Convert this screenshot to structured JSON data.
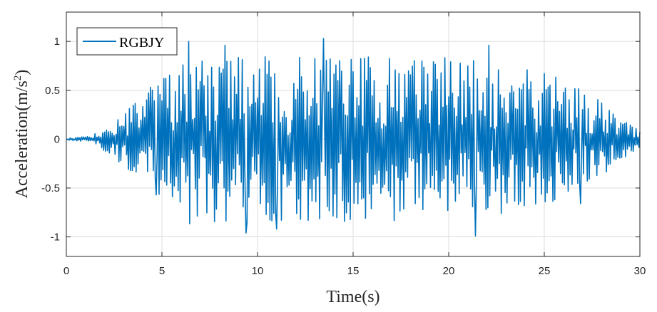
{
  "chart_data": {
    "type": "line",
    "title": "",
    "xlabel": "Time(s)",
    "ylabel_main": "Acceleration(m/s",
    "ylabel_sup": "2",
    "ylabel_close": ")",
    "xlim": [
      0,
      30
    ],
    "ylim": [
      -1.2,
      1.3
    ],
    "xticks": [
      0,
      5,
      10,
      15,
      20,
      25,
      30
    ],
    "xtick_labels": [
      "0",
      "5",
      "10",
      "15",
      "20",
      "25",
      "30"
    ],
    "yticks": [
      1,
      0.5,
      0,
      -0.5,
      -1
    ],
    "ytick_labels": [
      "1",
      "0.5",
      "0",
      "-0.5",
      "-1"
    ],
    "grid": true,
    "legend_position": "top-left",
    "series": [
      {
        "name": "RGBJY",
        "color": "#0072bd",
        "dt": 0.05,
        "envelope": [
          [
            0,
            0.01
          ],
          [
            1.3,
            0.03
          ],
          [
            2.5,
            0.2
          ],
          [
            4.5,
            0.55
          ],
          [
            6.5,
            0.9
          ],
          [
            10,
            0.85
          ],
          [
            20,
            0.85
          ],
          [
            25,
            0.7
          ],
          [
            28,
            0.4
          ],
          [
            30,
            0.08
          ]
        ],
        "peaks": [
          {
            "x": 6.4,
            "y": 1.0
          },
          {
            "x": 13.45,
            "y": 1.03
          },
          {
            "x": 9.4,
            "y": -0.96
          },
          {
            "x": 11.0,
            "y": -0.92
          },
          {
            "x": 21.4,
            "y": -0.99
          },
          {
            "x": 8.3,
            "y": 0.96
          },
          {
            "x": 22.1,
            "y": 0.96
          },
          {
            "x": 4.7,
            "y": -0.57
          },
          {
            "x": 26.9,
            "y": -0.66
          }
        ]
      }
    ]
  }
}
